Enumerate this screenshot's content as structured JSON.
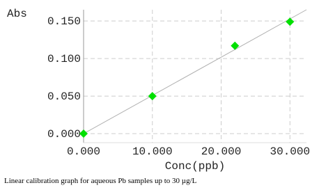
{
  "chart_data": {
    "type": "scatter",
    "y_label": "Abs",
    "x_label": "Conc(ppb)",
    "caption": "Linear calibration graph for aqueous Pb samples up to 30 µg/L",
    "x": [
      0,
      10,
      22,
      30
    ],
    "values": [
      0.0,
      0.05,
      0.117,
      0.149
    ],
    "color": "#00e000",
    "fit_line": {
      "x": [
        0,
        32.4
      ],
      "y": [
        0,
        0.165
      ],
      "color": "#b0b0b0"
    },
    "xlim": [
      0,
      32.4
    ],
    "ylim": [
      -0.012,
      0.165
    ],
    "xticks": [
      {
        "value": 0,
        "label": "0.000"
      },
      {
        "value": 10,
        "label": "10.000"
      },
      {
        "value": 20,
        "label": "20.000"
      },
      {
        "value": 30,
        "label": "30.000"
      }
    ],
    "yticks": [
      {
        "value": 0,
        "label": "0.000"
      },
      {
        "value": 0.05,
        "label": "0.050"
      },
      {
        "value": 0.1,
        "label": "0.100"
      },
      {
        "value": 0.15,
        "label": "0.150"
      }
    ],
    "grid": true
  }
}
